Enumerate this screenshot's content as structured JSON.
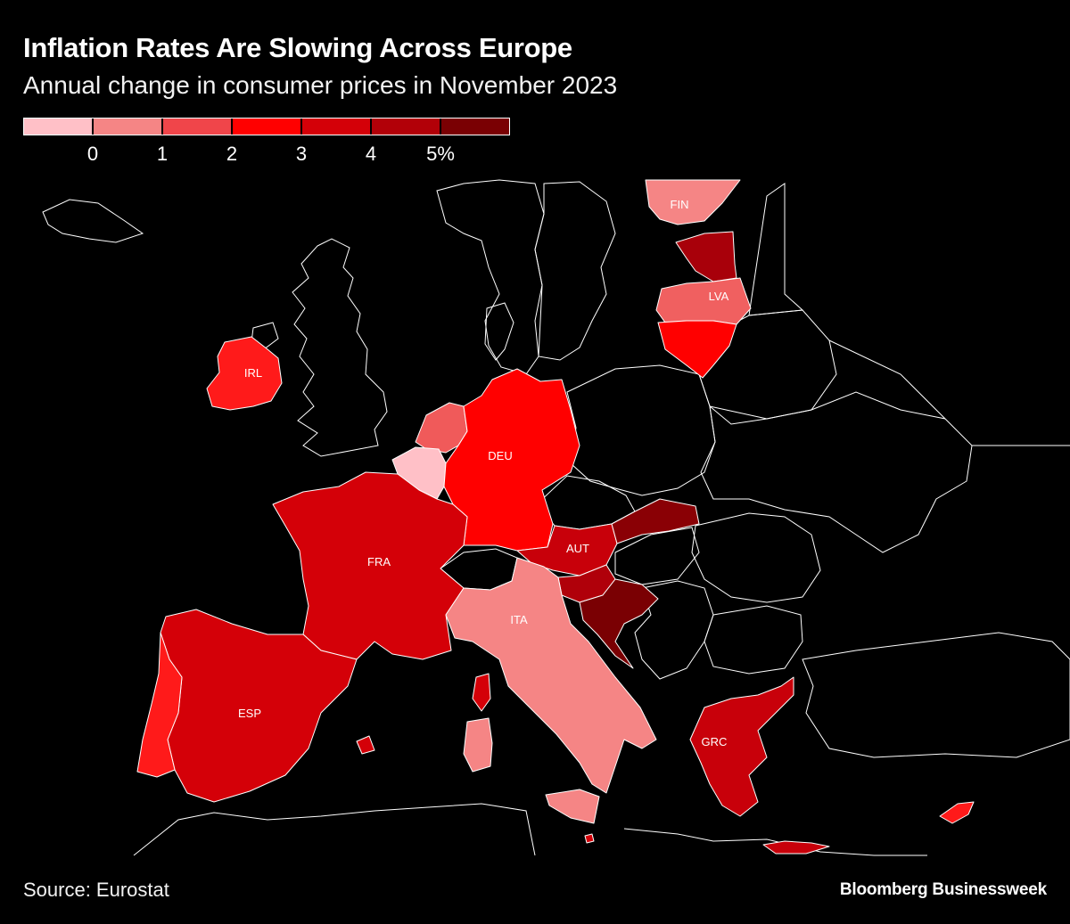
{
  "title": "Inflation Rates Are Slowing Across Europe",
  "subtitle": "Annual change in consumer prices in November 2023",
  "legend": {
    "colors": [
      "#ffc0c7",
      "#f58585",
      "#f0454a",
      "#ff0000",
      "#d40008",
      "#b20008",
      "#7a0003"
    ],
    "ticks": [
      "0",
      "1",
      "2",
      "3",
      "4",
      "5%"
    ]
  },
  "map_data": {
    "countries": [
      {
        "code": "FIN",
        "label": "FIN",
        "color": "#f58585"
      },
      {
        "code": "EST",
        "label": "",
        "color": "#a8000a"
      },
      {
        "code": "LVA",
        "label": "LVA",
        "color": "#f06060"
      },
      {
        "code": "LTU",
        "label": "",
        "color": "#ff0000"
      },
      {
        "code": "IRL",
        "label": "IRL",
        "color": "#ff1a1a"
      },
      {
        "code": "NLD",
        "label": "",
        "color": "#f05a5a"
      },
      {
        "code": "BEL",
        "label": "",
        "color": "#ffc0c7"
      },
      {
        "code": "DEU",
        "label": "DEU",
        "color": "#ff0000"
      },
      {
        "code": "FRA",
        "label": "FRA",
        "color": "#d40008"
      },
      {
        "code": "AUT",
        "label": "AUT",
        "color": "#c8000a"
      },
      {
        "code": "SVK",
        "label": "",
        "color": "#8a0005"
      },
      {
        "code": "SVN",
        "label": "",
        "color": "#b0000a"
      },
      {
        "code": "HRV",
        "label": "",
        "color": "#7a0003"
      },
      {
        "code": "ITA",
        "label": "ITA",
        "color": "#f58585"
      },
      {
        "code": "ESP",
        "label": "ESP",
        "color": "#d40008"
      },
      {
        "code": "PRT",
        "label": "",
        "color": "#ff1a1a"
      },
      {
        "code": "GRC",
        "label": "GRC",
        "color": "#c8000a"
      },
      {
        "code": "CYP",
        "label": "",
        "color": "#ff1a1a"
      },
      {
        "code": "MLT",
        "label": "",
        "color": "#d40008"
      }
    ]
  },
  "source": "Source: Eurostat",
  "brand": "Bloomberg Businessweek"
}
